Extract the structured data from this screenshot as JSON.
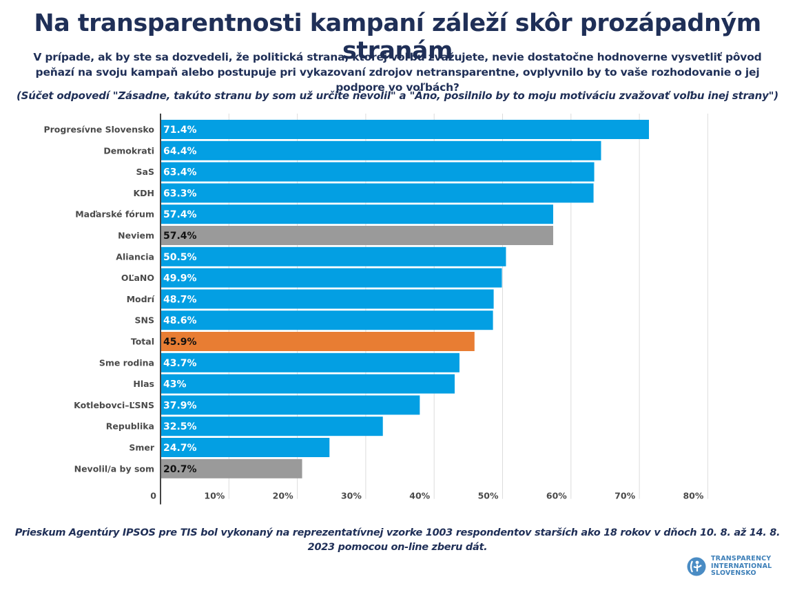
{
  "header": {
    "title": "Na transparentnosti kampaní záleží skôr prozápadným stranám",
    "subtitle": "V prípade, ak by ste sa dozvedeli, že politická strana, ktorej voľbu zvažujete, nevie dostatočne hodnoverne vysvetliť pôvod peňazí na svoju kampaň alebo postupuje pri vykazovaní zdrojov netransparentne, ovplyvnilo by to vaše rozhodovanie o jej podpore vo voľbách?",
    "note": "(Súčet odpovedí \"Zásadne, takúto stranu by som už určite nevolil\" a \"Áno, posilnilo by to moju motiváciu zvažovať voľbu inej strany\")"
  },
  "chart_data": {
    "type": "bar",
    "orientation": "horizontal",
    "title": "Na transparentnosti kampaní záleží skôr prozápadným stranám",
    "xlabel": "",
    "ylabel": "",
    "xlim": [
      0,
      80
    ],
    "grid": true,
    "categories": [
      "Progresívne Slovensko",
      "Demokrati",
      "SaS",
      "KDH",
      "Maďarské fórum",
      "Neviem",
      "Aliancia",
      "OĽaNO",
      "Modrí",
      "SNS",
      "Total",
      "Sme rodina",
      "Hlas",
      "Kotlebovci–ĽSNS",
      "Republika",
      "Smer",
      "Nevolil/a by som"
    ],
    "values": [
      71.4,
      64.4,
      63.4,
      63.3,
      57.4,
      57.4,
      50.5,
      49.9,
      48.7,
      48.6,
      45.9,
      43.7,
      43.0,
      37.9,
      32.5,
      24.7,
      20.7
    ],
    "value_labels": [
      "71.4%",
      "64.4%",
      "63.4%",
      "63.3%",
      "57.4%",
      "57.4%",
      "50.5%",
      "49.9%",
      "48.7%",
      "48.6%",
      "45.9%",
      "43.7%",
      "43%",
      "37.9%",
      "32.5%",
      "24.7%",
      "20.7%"
    ],
    "bar_kinds": [
      "party",
      "party",
      "party",
      "party",
      "party",
      "other",
      "party",
      "party",
      "party",
      "party",
      "total",
      "party",
      "party",
      "party",
      "party",
      "party",
      "other"
    ],
    "x_ticks": [
      0,
      10,
      20,
      30,
      40,
      50,
      60,
      70,
      80
    ],
    "x_tick_labels": [
      "0",
      "10%",
      "20%",
      "30%",
      "40%",
      "50%",
      "60%",
      "70%",
      "80%"
    ],
    "colors": {
      "party": "#039fe3",
      "other": "#9a9a9a",
      "total": "#e87d33",
      "label_on_party": "#ffffff",
      "label_on_other": "#111111",
      "label_on_total": "#111111"
    },
    "legend": "none"
  },
  "footer": {
    "text": "Prieskum Agentúry IPSOS pre TIS bol vykonaný na reprezentatívnej vzorke 1003 respondentov starších ako 18 rokov v dňoch 10. 8. až 14. 8. 2023 pomocou on-line zberu dát."
  },
  "logo": {
    "icon": "transparency-international-icon",
    "lines": [
      "TRANSPARENCY",
      "INTERNATIONAL",
      "SLOVENSKO"
    ]
  }
}
